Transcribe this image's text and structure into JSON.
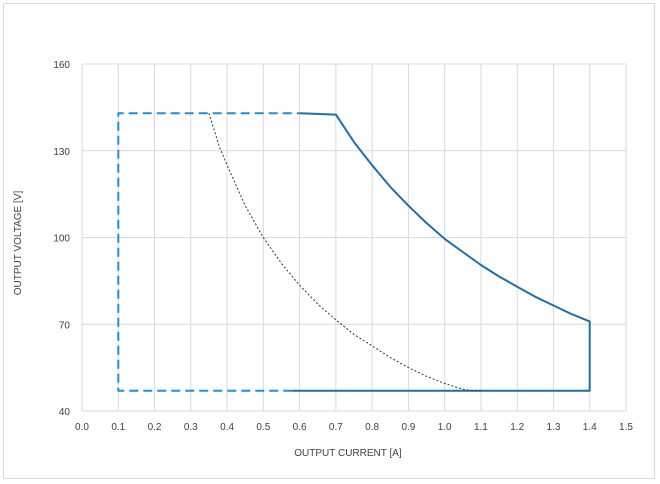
{
  "chart_data": {
    "type": "line",
    "title": "",
    "xlabel": "OUTPUT CURRENT [A]",
    "ylabel": "OUTPUT  VOLTAGE [V]",
    "xlim": [
      0.0,
      1.5
    ],
    "ylim": [
      40,
      160
    ],
    "x_ticks": [
      0.0,
      0.1,
      0.2,
      0.3,
      0.4,
      0.5,
      0.6,
      0.7,
      0.8,
      0.9,
      1.0,
      1.1,
      1.2,
      1.3,
      1.4,
      1.5
    ],
    "x_tick_labels": [
      "0.0",
      "0.1",
      "0.2",
      "0.3",
      "0.4",
      "0.5",
      "0.6",
      "0.7",
      "0.8",
      "0.9",
      "1.0",
      "1.1",
      "1.2",
      "1.3",
      "1.4",
      "1.5"
    ],
    "y_ticks": [
      40,
      70,
      100,
      130,
      160
    ],
    "y_tick_labels": [
      "40",
      "70",
      "100",
      "130",
      "160"
    ],
    "grid": true,
    "legend": "none",
    "series": [
      {
        "style": "dashed",
        "color": "#1f8fd8",
        "x": [
          0.58,
          0.1,
          0.1,
          0.6
        ],
        "y": [
          47,
          47,
          143,
          143
        ]
      },
      {
        "style": "solid",
        "color": "#1f6fa8",
        "x": [
          0.6,
          0.7,
          0.75,
          0.8,
          0.85,
          0.9,
          0.95,
          1.0,
          1.05,
          1.1,
          1.15,
          1.2,
          1.25,
          1.3,
          1.35,
          1.4,
          1.4,
          0.58
        ],
        "y": [
          143,
          142.5,
          133,
          125,
          117.5,
          111,
          105,
          99.5,
          95,
          90.5,
          86.5,
          83,
          79.5,
          76.5,
          73.5,
          71,
          47,
          47
        ]
      },
      {
        "style": "dotted",
        "color": "#333333",
        "x": [
          0.35,
          0.38,
          0.4,
          0.45,
          0.5,
          0.55,
          0.6,
          0.65,
          0.7,
          0.75,
          0.8,
          0.85,
          0.9,
          0.95,
          1.0,
          1.05,
          1.08,
          1.1
        ],
        "y": [
          143,
          131,
          125,
          111,
          100,
          91,
          83.5,
          77,
          71.5,
          66.5,
          62.5,
          58.5,
          55,
          52,
          49.5,
          47.5,
          47,
          47
        ]
      }
    ]
  }
}
